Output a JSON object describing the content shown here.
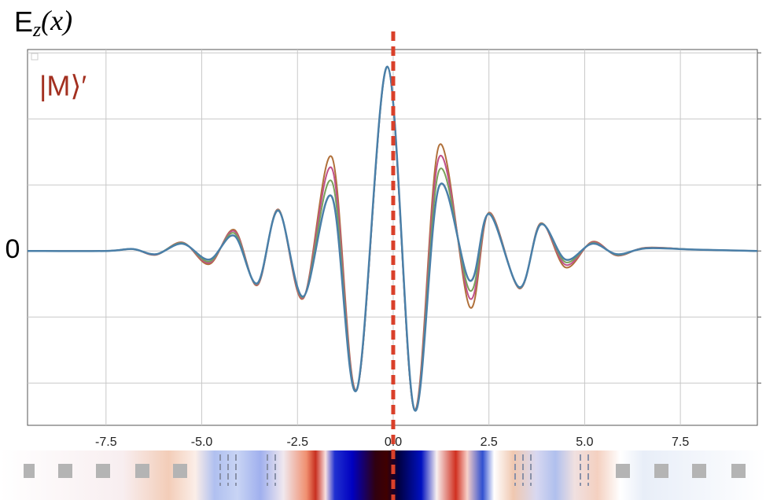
{
  "chart_data": {
    "type": "line",
    "title": {
      "base": "E",
      "sub": "z",
      "arg": "(x)"
    },
    "annotation": "|M⟩′",
    "annotation_color": "#a33020",
    "marker_x": 0,
    "marker_color": "#d9402a",
    "x": [
      -9.55,
      -7.5,
      -6.8,
      -6.2,
      -5.5,
      -4.8,
      -4.15,
      -3.55,
      -3.0,
      -2.35,
      -1.6,
      -0.95,
      -0.15,
      0.55,
      1.2,
      2.0,
      2.5,
      3.3,
      3.85,
      4.5,
      5.2,
      5.85,
      6.6,
      7.9,
      9.51
    ],
    "series": [
      {
        "color": "#b0703a",
        "values": [
          0,
          0,
          0.03,
          -0.06,
          0.13,
          -0.2,
          0.32,
          -0.52,
          0.63,
          -0.72,
          1.42,
          -2.1,
          2.79,
          -2.4,
          1.6,
          -0.85,
          0.58,
          -0.57,
          0.42,
          -0.25,
          0.14,
          -0.07,
          0.05,
          0.02,
          0
        ]
      },
      {
        "color": "#c0508a",
        "values": [
          0,
          0,
          0.03,
          -0.055,
          0.125,
          -0.18,
          0.3,
          -0.51,
          0.625,
          -0.71,
          1.25,
          -2.1,
          2.79,
          -2.4,
          1.42,
          -0.72,
          0.575,
          -0.565,
          0.415,
          -0.21,
          0.13,
          -0.065,
          0.047,
          0.02,
          0
        ]
      },
      {
        "color": "#7aa05a",
        "values": [
          0,
          0,
          0.03,
          -0.05,
          0.12,
          -0.16,
          0.27,
          -0.5,
          0.62,
          -0.7,
          1.05,
          -2.1,
          2.79,
          -2.4,
          1.22,
          -0.6,
          0.57,
          -0.56,
          0.41,
          -0.17,
          0.12,
          -0.06,
          0.045,
          0.02,
          0
        ]
      },
      {
        "color": "#4a7fa8",
        "values": [
          0,
          0,
          0.03,
          -0.05,
          0.11,
          -0.13,
          0.23,
          -0.49,
          0.61,
          -0.69,
          0.82,
          -2.1,
          2.79,
          -2.4,
          0.98,
          -0.45,
          0.56,
          -0.55,
          0.4,
          -0.13,
          0.11,
          -0.05,
          0.04,
          0.02,
          0
        ]
      }
    ],
    "xlim": [
      -9.55,
      9.51
    ],
    "ylim": [
      -2.64,
      3.05
    ],
    "xticks": [
      -7.5,
      {
        "value": -5,
        "label": "-5.0"
      },
      -2.5,
      {
        "value": 0,
        "label": "0.0"
      },
      2.5,
      {
        "value": 5,
        "label": "5.0"
      },
      7.5
    ],
    "yticks": [
      -2,
      -1,
      0,
      1,
      2,
      3
    ],
    "ylabels": [
      {
        "value": 0,
        "label": "0"
      }
    ],
    "grid": true
  }
}
